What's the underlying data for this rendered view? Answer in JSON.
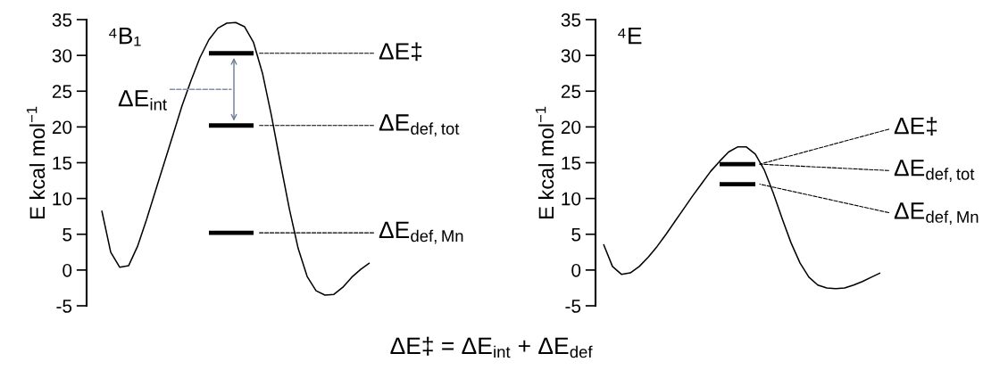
{
  "chart_data": [
    {
      "type": "line",
      "title": "⁴B₁",
      "ylabel": "E kcal mol$^{−1}$",
      "ylim": [
        -5,
        35
      ],
      "yticks": [
        -5,
        0,
        5,
        10,
        15,
        20,
        25,
        30,
        35
      ],
      "tick_labels": "y",
      "grid": false,
      "categories": [
        null,
        null,
        null,
        null,
        null,
        null,
        null,
        null,
        null,
        null,
        null,
        null,
        null,
        null,
        null,
        null,
        null,
        null,
        null,
        null,
        null,
        null,
        null,
        null,
        null,
        null,
        null,
        null,
        null,
        null,
        null
      ],
      "series": [
        {
          "color": "#000000",
          "values": [
            8.3,
            2.5,
            0.4,
            0.6,
            3.3,
            7,
            11,
            15,
            19,
            23,
            26.5,
            29.7,
            32.2,
            33.8,
            34.5,
            34.6,
            34,
            31.8,
            27.5,
            21.6,
            15,
            8.6,
            3,
            -0.9,
            -2.9,
            -3.5,
            -3.4,
            -2.4,
            -1,
            0.1,
            1
          ]
        },
        {
          "color": "#000000",
          "values": [
            null,
            null,
            null,
            null,
            null,
            null,
            null,
            null,
            null,
            null,
            null,
            null,
            30.3,
            30.3,
            30.3,
            30.3,
            30.3,
            30.3,
            null,
            null,
            null,
            null,
            null,
            null,
            null,
            null,
            null,
            null,
            null,
            null,
            null
          ]
        },
        {
          "color": "#000000",
          "values": [
            null,
            null,
            null,
            null,
            null,
            null,
            null,
            null,
            null,
            null,
            null,
            null,
            20.2,
            20.2,
            20.2,
            20.2,
            20.2,
            20.2,
            null,
            null,
            null,
            null,
            null,
            null,
            null,
            null,
            null,
            null,
            null,
            null,
            null
          ]
        },
        {
          "color": "#000000",
          "values": [
            null,
            null,
            null,
            null,
            null,
            null,
            null,
            null,
            null,
            null,
            null,
            null,
            5.2,
            5.2,
            5.2,
            5.2,
            5.2,
            5.2,
            null,
            null,
            null,
            null,
            null,
            null,
            null,
            null,
            null,
            null,
            null,
            null,
            null
          ]
        }
      ],
      "annotations": [
        "ΔE‡",
        "ΔE$_{def,tot}$",
        "ΔE$_{def,Mn}$",
        "ΔE$_{int}$",
        "ΔE‡ = ΔE$_{int}$ + ΔE$_{def}$"
      ]
    },
    {
      "type": "line",
      "title": "⁴E",
      "ylabel": "E kcal mol$^{−1}$",
      "ylim": [
        -5,
        35
      ],
      "yticks": [
        -5,
        0,
        5,
        10,
        15,
        20,
        25,
        30,
        35
      ],
      "tick_labels": "y",
      "grid": false,
      "categories": [
        null,
        null,
        null,
        null,
        null,
        null,
        null,
        null,
        null,
        null,
        null,
        null,
        null,
        null,
        null,
        null,
        null,
        null,
        null,
        null,
        null,
        null,
        null,
        null,
        null,
        null,
        null,
        null,
        null,
        null,
        null,
        null
      ],
      "series": [
        {
          "color": "#000000",
          "values": [
            3.6,
            0.5,
            -0.6,
            -0.4,
            0.5,
            1.8,
            3.3,
            5,
            6.8,
            8.6,
            10.4,
            12.1,
            13.8,
            15.2,
            16.5,
            17.2,
            17.2,
            16.2,
            14,
            10.8,
            7.2,
            3.8,
            1,
            -1.0,
            -2.1,
            -2.5,
            -2.6,
            -2.5,
            -2.1,
            -1.6,
            -1.0,
            -0.4
          ]
        },
        {
          "color": "#000000",
          "values": [
            null,
            null,
            null,
            null,
            null,
            null,
            null,
            null,
            null,
            null,
            null,
            null,
            null,
            14.8,
            14.8,
            14.8,
            14.8,
            14.8,
            null,
            null,
            null,
            null,
            null,
            null,
            null,
            null,
            null,
            null,
            null,
            null,
            null,
            null
          ]
        },
        {
          "color": "#000000",
          "values": [
            null,
            null,
            null,
            null,
            null,
            null,
            null,
            null,
            null,
            null,
            null,
            null,
            null,
            12.0,
            12.0,
            12.0,
            12.0,
            12.0,
            null,
            null,
            null,
            null,
            null,
            null,
            null,
            null,
            null,
            null,
            null,
            null,
            null,
            null
          ]
        }
      ],
      "annotations": [
        "ΔE‡",
        "ΔE$_{def,tot}$",
        "ΔE$_{def,Mn}$"
      ]
    }
  ]
}
